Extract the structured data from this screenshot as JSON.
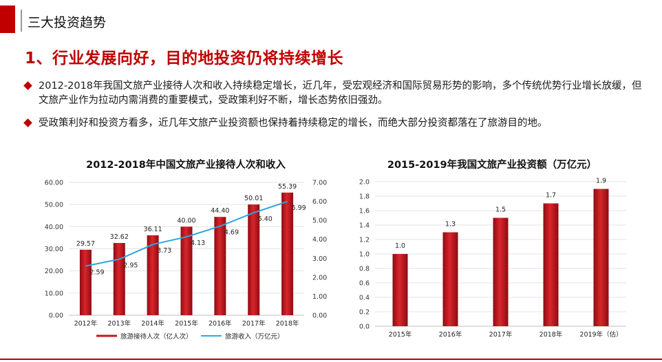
{
  "header": {
    "title": "三大投资趋势"
  },
  "main": {
    "heading": "1、行业发展向好，目的地投资仍将持续增长",
    "bullets": [
      "2012-2018年我国文旅产业接待人次和收入持续稳定增长，近几年，受宏观经济和国际贸易形势的影响，多个传统优势行业增长放缓，但文旅产业作为拉动内需消费的重要模式，受政策利好不断，增长态势依旧强劲。",
      "受政策利好和投资方看多，近几年文旅产业投资额也保持着持续稳定的增长，而绝大部分投资都落在了旅游目的地。"
    ]
  },
  "colors": {
    "accent": "#c00000",
    "bar": "#c0181f",
    "line": "#2aa7e0"
  },
  "chart_data": [
    {
      "type": "bar+line",
      "title": "2012-2018年中国文旅产业接待人次和收入",
      "categories": [
        "2012年",
        "2013年",
        "2014年",
        "2015年",
        "2016年",
        "2017年",
        "2018年"
      ],
      "series": [
        {
          "name": "旅游接待人次（亿人次）",
          "type": "bar",
          "axis": "left",
          "values": [
            29.57,
            32.62,
            36.11,
            40.0,
            44.4,
            50.01,
            55.39
          ],
          "labels": [
            "29.57",
            "32.62",
            "36.11",
            "40.00",
            "44.40",
            "50.01",
            "55.39"
          ]
        },
        {
          "name": "旅游收入（万亿元）",
          "type": "line",
          "axis": "right",
          "values": [
            2.59,
            2.95,
            3.73,
            4.13,
            4.69,
            5.4,
            5.99
          ],
          "labels": [
            "2.59",
            "2.95",
            "3.73",
            "4.13",
            "4.69",
            "5.40",
            "5.99"
          ]
        }
      ],
      "y_left": {
        "ylim": [
          0,
          60
        ],
        "ticks": [
          "0.00",
          "10.00",
          "20.00",
          "30.00",
          "40.00",
          "50.00",
          "60.00"
        ]
      },
      "y_right": {
        "ylim": [
          0,
          7
        ],
        "ticks": [
          "0.00",
          "1.00",
          "2.00",
          "3.00",
          "4.00",
          "5.00",
          "6.00",
          "7.00"
        ]
      },
      "grid": true,
      "legend": "bottom"
    },
    {
      "type": "bar",
      "title": "2015-2019年我国文旅产业投资额（万亿元）",
      "categories": [
        "2015年",
        "2016年",
        "2017年",
        "2018年",
        "2019年（估）"
      ],
      "values": [
        1.0,
        1.3,
        1.5,
        1.7,
        1.9
      ],
      "labels": [
        "1.0",
        "1.3",
        "1.5",
        "1.7",
        "1.9"
      ],
      "ylim": [
        0,
        2.0
      ],
      "ticks": [
        "0.0",
        "0.2",
        "0.4",
        "0.6",
        "0.8",
        "1.0",
        "1.2",
        "1.4",
        "1.6",
        "1.8",
        "2.0"
      ],
      "grid": true
    }
  ]
}
